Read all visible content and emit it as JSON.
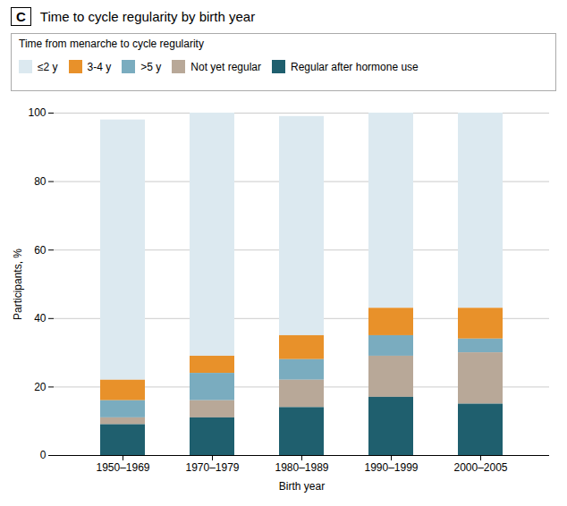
{
  "chart_data": {
    "type": "bar",
    "stacked": true,
    "title": "Time to cycle regularity by birth year",
    "annotations": [
      "C"
    ],
    "legend_title": "Time from menarche to cycle regularity",
    "xlabel": "Birth year",
    "ylabel": "Participants, %",
    "categories": [
      "1950–1969",
      "1970–1979",
      "1980–1989",
      "1990–1999",
      "2000–2005"
    ],
    "series": [
      {
        "name": "≤2 y",
        "color": "#dce9f0",
        "values": [
          76,
          71,
          64,
          57,
          57
        ]
      },
      {
        "name": "3-4 y",
        "color": "#e8912a",
        "values": [
          6,
          5,
          7,
          8,
          9
        ]
      },
      {
        "name": ">5 y",
        "color": "#7aacbf",
        "values": [
          5,
          8,
          6,
          6,
          4
        ]
      },
      {
        "name": "Not yet regular",
        "color": "#b8a898",
        "values": [
          2,
          5,
          8,
          12,
          15
        ]
      },
      {
        "name": "Regular after hormone use",
        "color": "#1f5f6e",
        "values": [
          9,
          11,
          14,
          17,
          15
        ]
      }
    ],
    "ylim": [
      0,
      100
    ],
    "yticks": [
      0,
      20,
      40,
      60,
      80,
      100
    ],
    "grid": true,
    "legend": "top"
  }
}
